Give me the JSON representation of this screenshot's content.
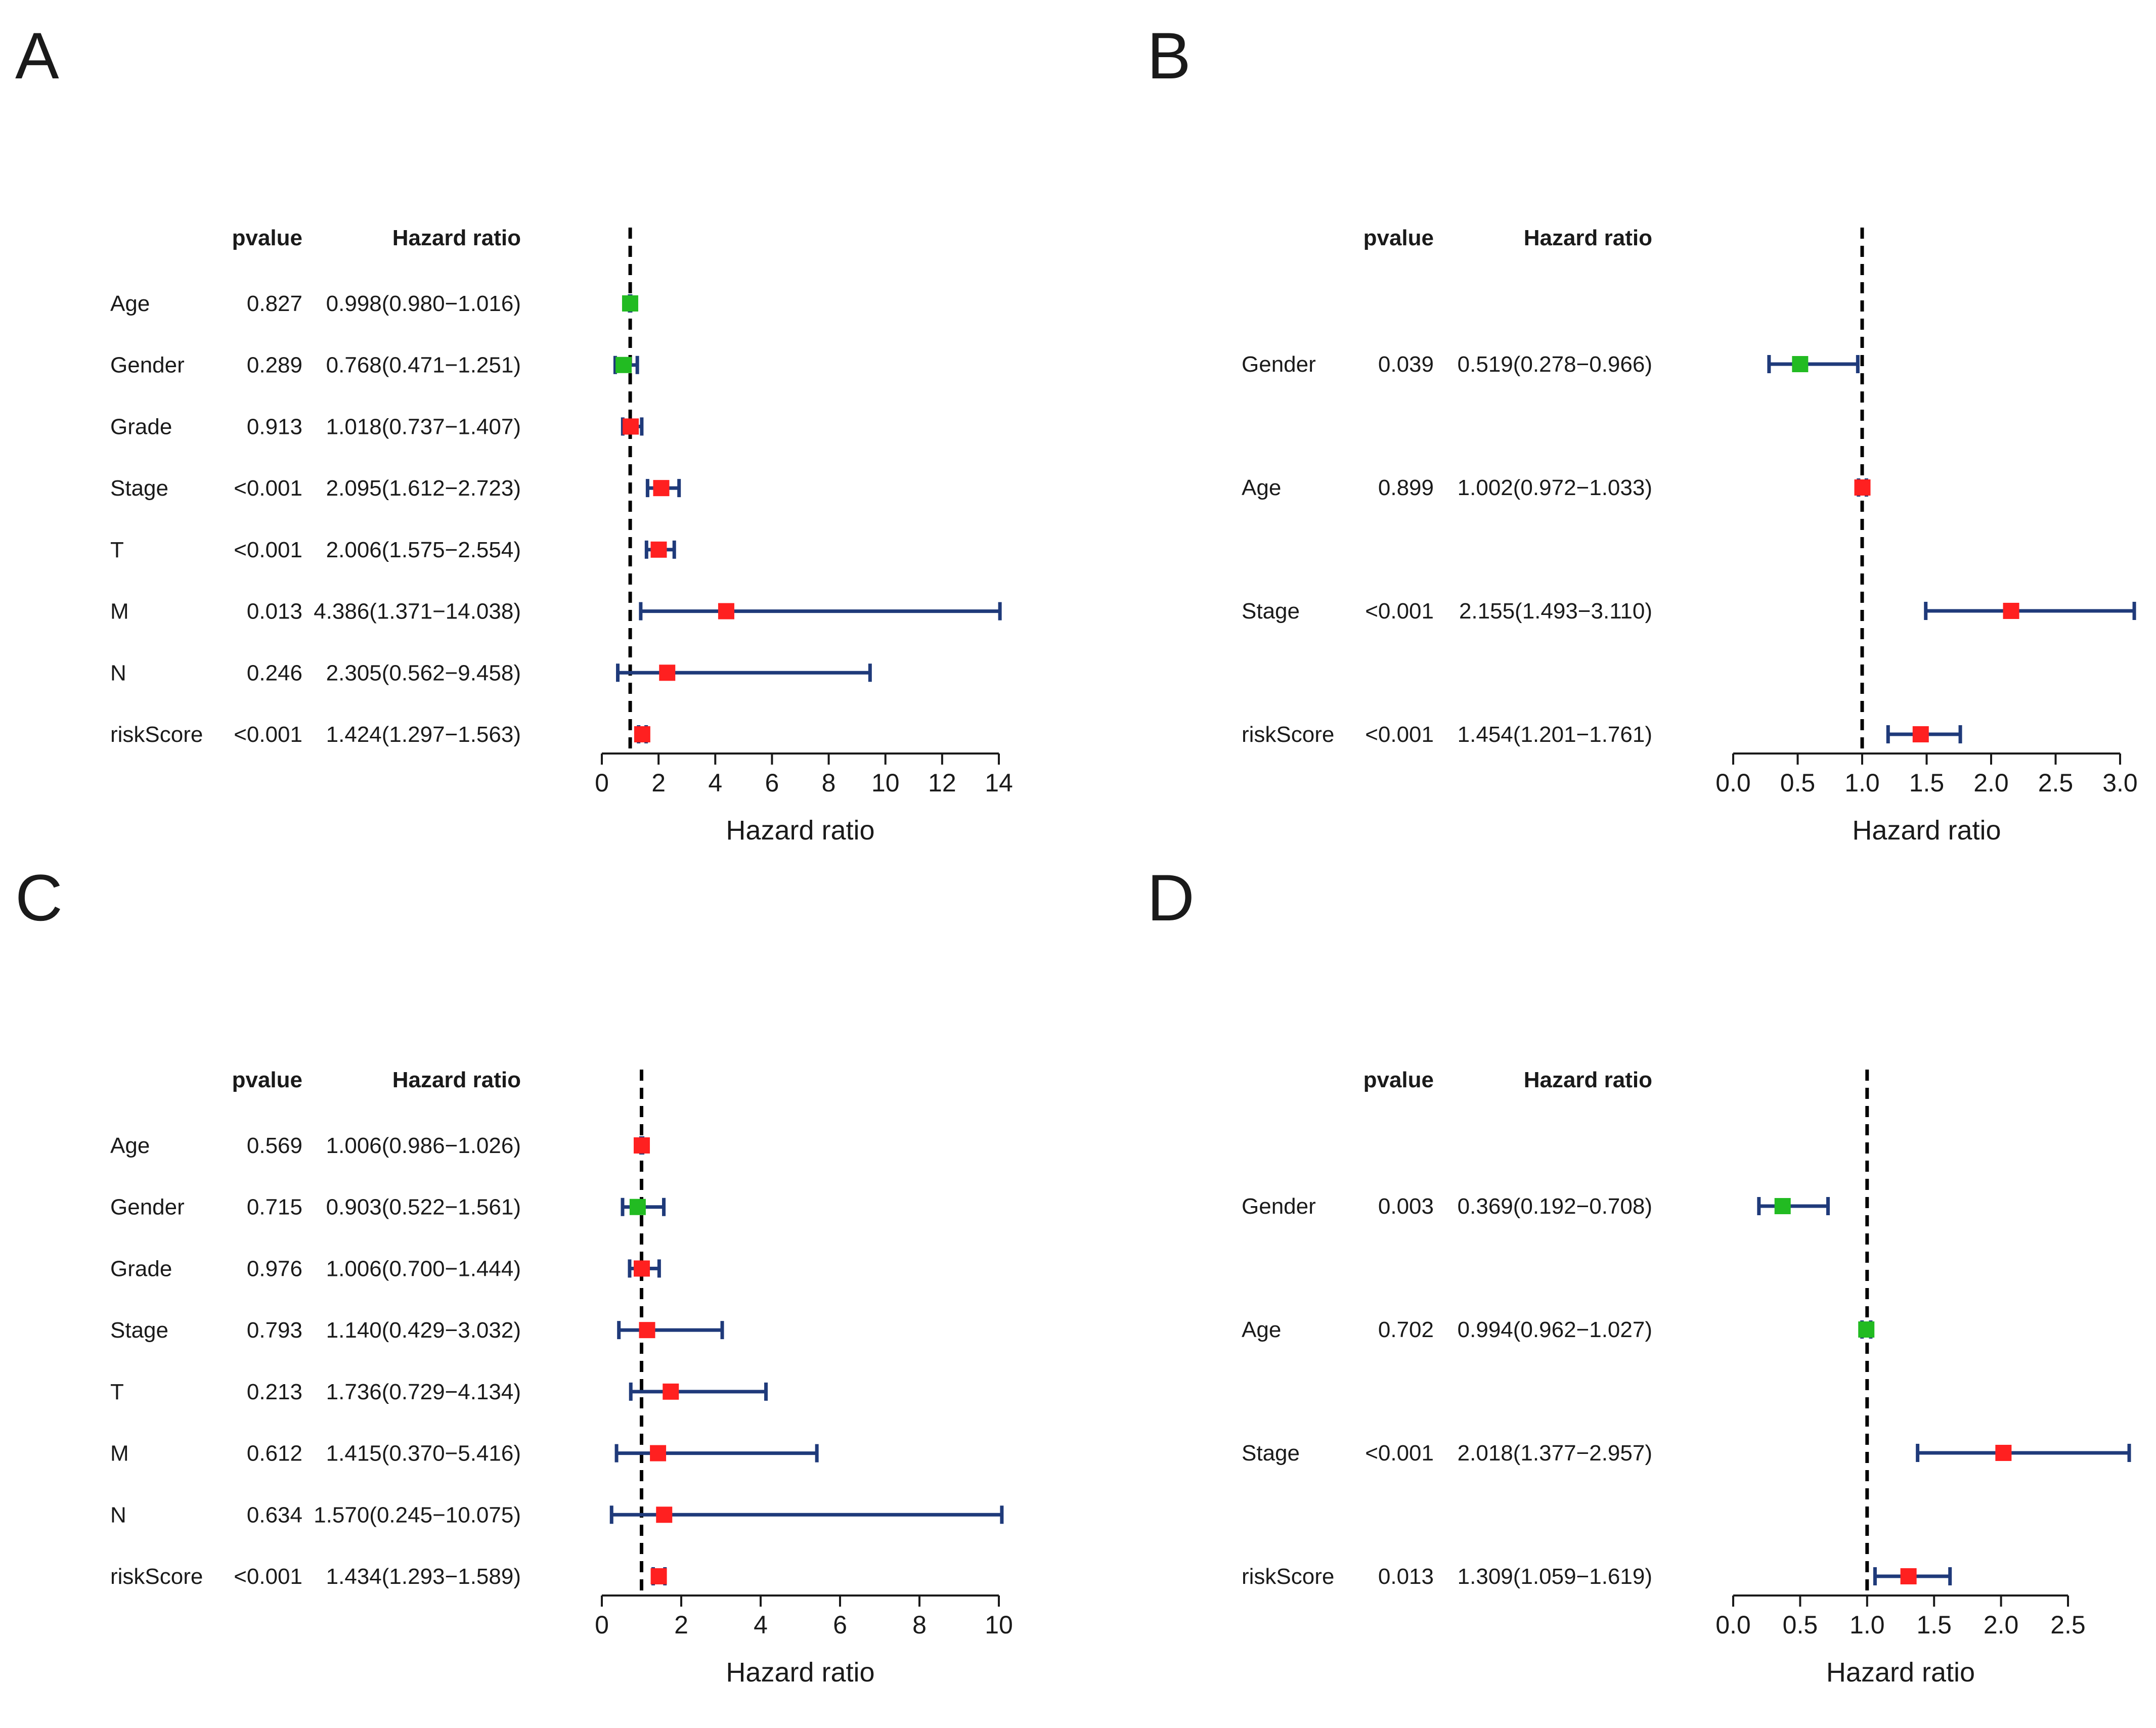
{
  "figure_title": "",
  "colors": {
    "protective": "#22bb22",
    "risk": "#ff2020",
    "ci_line": "#1f3a7a",
    "reference_line": "#000000",
    "text": "#1a1a1a"
  },
  "chart_data": [
    {
      "panel_label": "A",
      "type": "forest",
      "col_pvalue_header": "pvalue",
      "col_hr_header": "Hazard ratio",
      "xlabel": "Hazard ratio",
      "xlim": [
        0,
        14
      ],
      "ticks": [
        "0",
        "2",
        "4",
        "6",
        "8",
        "10",
        "12",
        "14"
      ],
      "tick_values": [
        0,
        2,
        4,
        6,
        8,
        10,
        12,
        14
      ],
      "reference": 1,
      "rows": [
        {
          "variable": "Age",
          "pvalue": "0.827",
          "hr_text": "0.998(0.980−1.016)",
          "hr": 0.998,
          "low": 0.98,
          "high": 1.016
        },
        {
          "variable": "Gender",
          "pvalue": "0.289",
          "hr_text": "0.768(0.471−1.251)",
          "hr": 0.768,
          "low": 0.471,
          "high": 1.251
        },
        {
          "variable": "Grade",
          "pvalue": "0.913",
          "hr_text": "1.018(0.737−1.407)",
          "hr": 1.018,
          "low": 0.737,
          "high": 1.407
        },
        {
          "variable": "Stage",
          "pvalue": "<0.001",
          "hr_text": "2.095(1.612−2.723)",
          "hr": 2.095,
          "low": 1.612,
          "high": 2.723
        },
        {
          "variable": "T",
          "pvalue": "<0.001",
          "hr_text": "2.006(1.575−2.554)",
          "hr": 2.006,
          "low": 1.575,
          "high": 2.554
        },
        {
          "variable": "M",
          "pvalue": "0.013",
          "hr_text": "4.386(1.371−14.038)",
          "hr": 4.386,
          "low": 1.371,
          "high": 14.038
        },
        {
          "variable": "N",
          "pvalue": "0.246",
          "hr_text": "2.305(0.562−9.458)",
          "hr": 2.305,
          "low": 0.562,
          "high": 9.458
        },
        {
          "variable": "riskScore",
          "pvalue": "<0.001",
          "hr_text": "1.424(1.297−1.563)",
          "hr": 1.424,
          "low": 1.297,
          "high": 1.563
        }
      ]
    },
    {
      "panel_label": "B",
      "type": "forest",
      "col_pvalue_header": "pvalue",
      "col_hr_header": "Hazard ratio",
      "xlabel": "Hazard ratio",
      "xlim": [
        0,
        3
      ],
      "ticks": [
        "0.0",
        "0.5",
        "1.0",
        "1.5",
        "2.0",
        "2.5",
        "3.0"
      ],
      "tick_values": [
        0,
        0.5,
        1,
        1.5,
        2,
        2.5,
        3
      ],
      "reference": 1,
      "rows": [
        {
          "variable": "Gender",
          "pvalue": "0.039",
          "hr_text": "0.519(0.278−0.966)",
          "hr": 0.519,
          "low": 0.278,
          "high": 0.966
        },
        {
          "variable": "Age",
          "pvalue": "0.899",
          "hr_text": "1.002(0.972−1.033)",
          "hr": 1.002,
          "low": 0.972,
          "high": 1.033
        },
        {
          "variable": "Stage",
          "pvalue": "<0.001",
          "hr_text": "2.155(1.493−3.110)",
          "hr": 2.155,
          "low": 1.493,
          "high": 3.11
        },
        {
          "variable": "riskScore",
          "pvalue": "<0.001",
          "hr_text": "1.454(1.201−1.761)",
          "hr": 1.454,
          "low": 1.201,
          "high": 1.761
        }
      ]
    },
    {
      "panel_label": "C",
      "type": "forest",
      "col_pvalue_header": "pvalue",
      "col_hr_header": "Hazard ratio",
      "xlabel": "Hazard ratio",
      "xlim": [
        0,
        10
      ],
      "ticks": [
        "0",
        "2",
        "4",
        "6",
        "8",
        "10"
      ],
      "tick_values": [
        0,
        2,
        4,
        6,
        8,
        10
      ],
      "reference": 1,
      "rows": [
        {
          "variable": "Age",
          "pvalue": "0.569",
          "hr_text": "1.006(0.986−1.026)",
          "hr": 1.006,
          "low": 0.986,
          "high": 1.026
        },
        {
          "variable": "Gender",
          "pvalue": "0.715",
          "hr_text": "0.903(0.522−1.561)",
          "hr": 0.903,
          "low": 0.522,
          "high": 1.561
        },
        {
          "variable": "Grade",
          "pvalue": "0.976",
          "hr_text": "1.006(0.700−1.444)",
          "hr": 1.006,
          "low": 0.7,
          "high": 1.444
        },
        {
          "variable": "Stage",
          "pvalue": "0.793",
          "hr_text": "1.140(0.429−3.032)",
          "hr": 1.14,
          "low": 0.429,
          "high": 3.032
        },
        {
          "variable": "T",
          "pvalue": "0.213",
          "hr_text": "1.736(0.729−4.134)",
          "hr": 1.736,
          "low": 0.729,
          "high": 4.134
        },
        {
          "variable": "M",
          "pvalue": "0.612",
          "hr_text": "1.415(0.370−5.416)",
          "hr": 1.415,
          "low": 0.37,
          "high": 5.416
        },
        {
          "variable": "N",
          "pvalue": "0.634",
          "hr_text": "1.570(0.245−10.075)",
          "hr": 1.57,
          "low": 0.245,
          "high": 10.075
        },
        {
          "variable": "riskScore",
          "pvalue": "<0.001",
          "hr_text": "1.434(1.293−1.589)",
          "hr": 1.434,
          "low": 1.293,
          "high": 1.589
        }
      ]
    },
    {
      "panel_label": "D",
      "type": "forest",
      "col_pvalue_header": "pvalue",
      "col_hr_header": "Hazard ratio",
      "xlabel": "Hazard ratio",
      "xlim": [
        0,
        2.5
      ],
      "ticks": [
        "0.0",
        "0.5",
        "1.0",
        "1.5",
        "2.0",
        "2.5"
      ],
      "tick_values": [
        0,
        0.5,
        1,
        1.5,
        2,
        2.5
      ],
      "reference": 1,
      "rows": [
        {
          "variable": "Gender",
          "pvalue": "0.003",
          "hr_text": "0.369(0.192−0.708)",
          "hr": 0.369,
          "low": 0.192,
          "high": 0.708
        },
        {
          "variable": "Age",
          "pvalue": "0.702",
          "hr_text": "0.994(0.962−1.027)",
          "hr": 0.994,
          "low": 0.962,
          "high": 1.027
        },
        {
          "variable": "Stage",
          "pvalue": "<0.001",
          "hr_text": "2.018(1.377−2.957)",
          "hr": 2.018,
          "low": 1.377,
          "high": 2.957
        },
        {
          "variable": "riskScore",
          "pvalue": "0.013",
          "hr_text": "1.309(1.059−1.619)",
          "hr": 1.309,
          "low": 1.059,
          "high": 1.619
        }
      ]
    }
  ]
}
